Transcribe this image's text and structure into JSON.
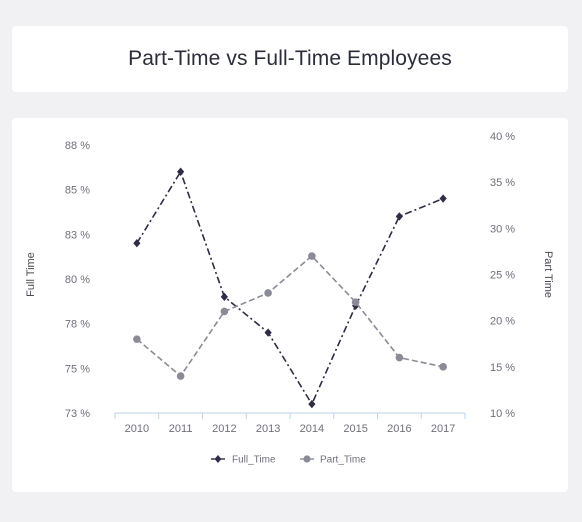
{
  "chart_data": {
    "type": "line",
    "title": "Part-Time vs Full-Time Employees",
    "categories": [
      "2010",
      "2011",
      "2012",
      "2013",
      "2014",
      "2015",
      "2016",
      "2017"
    ],
    "y_left": {
      "label": "Full Time",
      "ylim": [
        72.5,
        88.0
      ],
      "ticks": [
        72.5,
        75.0,
        77.5,
        80.0,
        82.5,
        85.0,
        87.5
      ],
      "tick_labels": [
        "73 %",
        "75 %",
        "78 %",
        "80 %",
        "83 %",
        "85 %",
        "88 %"
      ]
    },
    "y_right": {
      "label": "Part Time",
      "ylim": [
        10,
        40
      ],
      "ticks": [
        10,
        15,
        20,
        25,
        30,
        35,
        40
      ],
      "tick_labels": [
        "10 %",
        "15 %",
        "20 %",
        "25 %",
        "30 %",
        "35 %",
        "40 %"
      ]
    },
    "series": [
      {
        "name": "Full_Time",
        "axis": "left",
        "values": [
          82.0,
          86.0,
          79.0,
          77.0,
          73.0,
          78.5,
          83.5,
          84.5
        ],
        "color": "#2e2d45",
        "marker": "diamond",
        "line_style": "dash-dot"
      },
      {
        "name": "Part_Time",
        "axis": "right",
        "values": [
          18,
          14,
          21,
          23,
          27,
          22,
          16,
          15
        ],
        "color": "#8b8a97",
        "marker": "circle",
        "line_style": "dashed"
      }
    ],
    "grid": false,
    "legend_position": "bottom"
  }
}
